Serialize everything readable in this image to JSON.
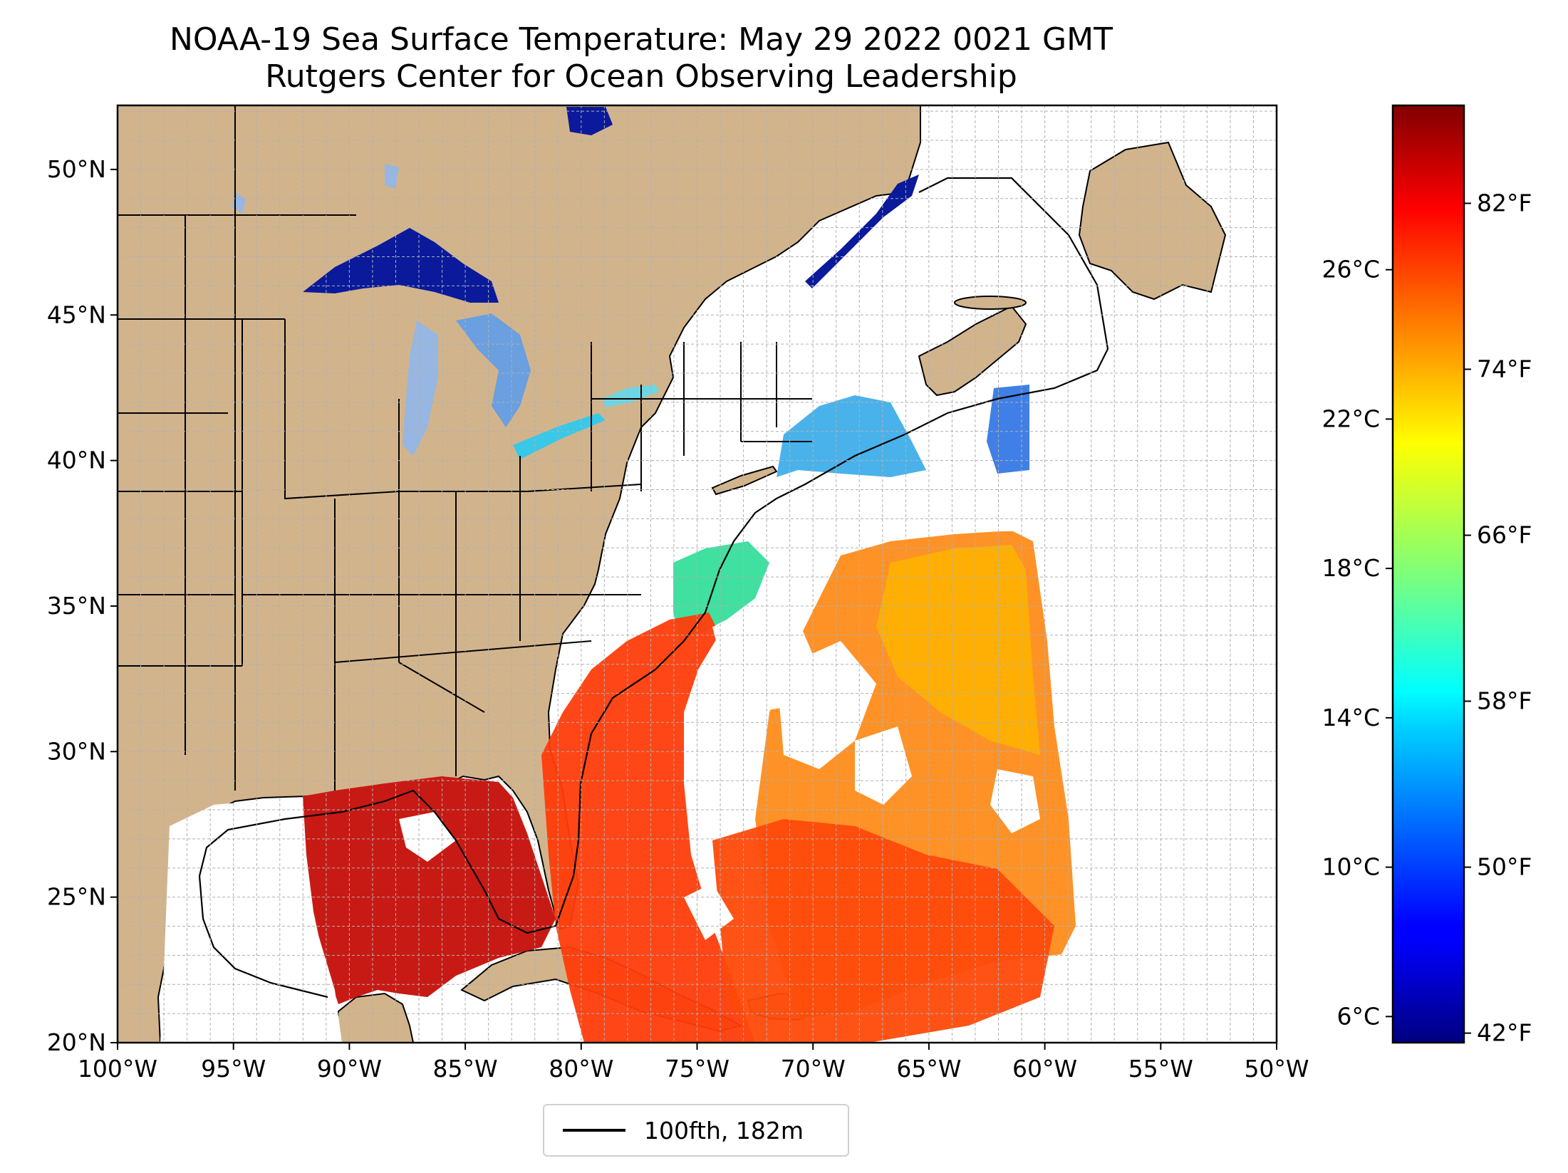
{
  "title": {
    "line1": "NOAA-19 Sea Surface Temperature: May 29 2022 0021 GMT",
    "line2": "Rutgers Center for Ocean Observing Leadership"
  },
  "map": {
    "lon_min": -100,
    "lon_max": -50,
    "lat_min": 20,
    "lat_max": 52.2,
    "lat_ticks": [
      {
        "value": 20,
        "label": "20°N"
      },
      {
        "value": 25,
        "label": "25°N"
      },
      {
        "value": 30,
        "label": "30°N"
      },
      {
        "value": 35,
        "label": "35°N"
      },
      {
        "value": 40,
        "label": "40°N"
      },
      {
        "value": 45,
        "label": "45°N"
      },
      {
        "value": 50,
        "label": "50°N"
      }
    ],
    "lon_ticks": [
      {
        "value": -100,
        "label": "100°W"
      },
      {
        "value": -95,
        "label": "95°W"
      },
      {
        "value": -90,
        "label": "90°W"
      },
      {
        "value": -85,
        "label": "85°W"
      },
      {
        "value": -80,
        "label": "80°W"
      },
      {
        "value": -75,
        "label": "75°W"
      },
      {
        "value": -70,
        "label": "70°W"
      },
      {
        "value": -65,
        "label": "65°W"
      },
      {
        "value": -60,
        "label": "60°W"
      },
      {
        "value": -55,
        "label": "55°W"
      },
      {
        "value": -50,
        "label": "50°W"
      }
    ],
    "grid": true,
    "colors": {
      "land": "#d2b48c",
      "lakes": "#97b6e1",
      "ocean": "#ffffff",
      "grid": "#b0b0b0"
    }
  },
  "legend": {
    "label": "100fth, 182m",
    "placement": "bottom-center"
  },
  "colorbar": {
    "cmap": "jet",
    "range_c": [
      5.3,
      30.4
    ],
    "celsius_ticks": [
      {
        "value": 6,
        "label": "6°C"
      },
      {
        "value": 10,
        "label": "10°C"
      },
      {
        "value": 14,
        "label": "14°C"
      },
      {
        "value": 18,
        "label": "18°C"
      },
      {
        "value": 22,
        "label": "22°C"
      },
      {
        "value": 26,
        "label": "26°C"
      }
    ],
    "fahrenheit_ticks": [
      {
        "value": 42,
        "label": "42°F"
      },
      {
        "value": 50,
        "label": "50°F"
      },
      {
        "value": 58,
        "label": "58°F"
      },
      {
        "value": 66,
        "label": "66°F"
      },
      {
        "value": 74,
        "label": "74°F"
      },
      {
        "value": 82,
        "label": "82°F"
      }
    ]
  }
}
